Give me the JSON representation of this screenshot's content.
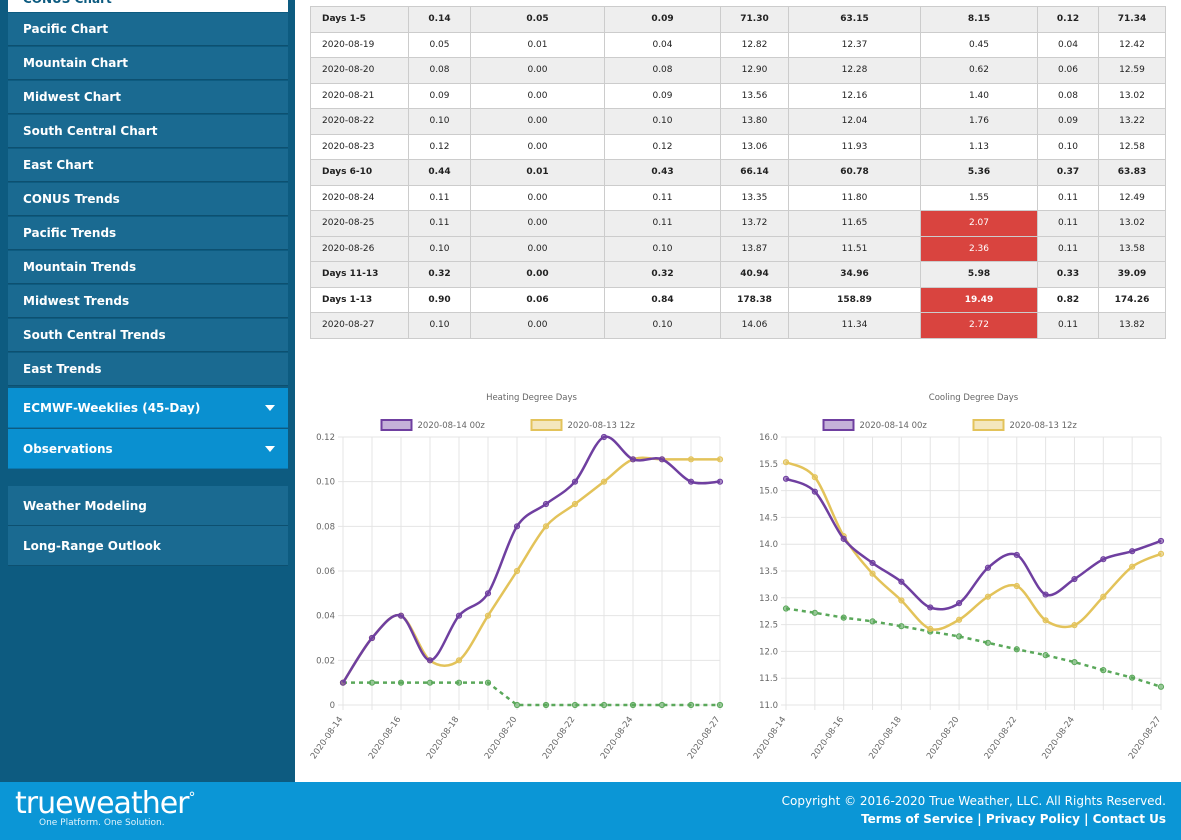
{
  "sidebar": {
    "top_item": "CONUS Chart",
    "items": [
      "Pacific Chart",
      "Mountain Chart",
      "Midwest Chart",
      "South Central Chart",
      "East Chart",
      "CONUS Trends",
      "Pacific Trends",
      "Mountain Trends",
      "Midwest Trends",
      "South Central Trends",
      "East Trends"
    ],
    "dropdowns": [
      "ECMWF-Weeklies (45-Day)",
      "Observations"
    ],
    "sections": [
      "Weather Modeling",
      "Long-Range Outlook"
    ]
  },
  "table": {
    "rows": [
      [
        "Days 1-5",
        "0.14",
        "0.05",
        "0.09",
        "71.30",
        "63.15",
        "8.15",
        "0.12",
        "71.34"
      ],
      [
        "2020-08-19",
        "0.05",
        "0.01",
        "0.04",
        "12.82",
        "12.37",
        "0.45",
        "0.04",
        "12.42"
      ],
      [
        "2020-08-20",
        "0.08",
        "0.00",
        "0.08",
        "12.90",
        "12.28",
        "0.62",
        "0.06",
        "12.59"
      ],
      [
        "2020-08-21",
        "0.09",
        "0.00",
        "0.09",
        "13.56",
        "12.16",
        "1.40",
        "0.08",
        "13.02"
      ],
      [
        "2020-08-22",
        "0.10",
        "0.00",
        "0.10",
        "13.80",
        "12.04",
        "1.76",
        "0.09",
        "13.22"
      ],
      [
        "2020-08-23",
        "0.12",
        "0.00",
        "0.12",
        "13.06",
        "11.93",
        "1.13",
        "0.10",
        "12.58"
      ],
      [
        "Days 6-10",
        "0.44",
        "0.01",
        "0.43",
        "66.14",
        "60.78",
        "5.36",
        "0.37",
        "63.83"
      ],
      [
        "2020-08-24",
        "0.11",
        "0.00",
        "0.11",
        "13.35",
        "11.80",
        "1.55",
        "0.11",
        "12.49"
      ],
      [
        "2020-08-25",
        "0.11",
        "0.00",
        "0.11",
        "13.72",
        "11.65",
        "2.07",
        "0.11",
        "13.02"
      ],
      [
        "2020-08-26",
        "0.10",
        "0.00",
        "0.10",
        "13.87",
        "11.51",
        "2.36",
        "0.11",
        "13.58"
      ],
      [
        "Days 11-13",
        "0.32",
        "0.00",
        "0.32",
        "40.94",
        "34.96",
        "5.98",
        "0.33",
        "39.09"
      ],
      [
        "Days 1-13",
        "0.90",
        "0.06",
        "0.84",
        "178.38",
        "158.89",
        "19.49",
        "0.82",
        "174.26"
      ],
      [
        "2020-08-27",
        "0.10",
        "0.00",
        "0.10",
        "14.06",
        "11.34",
        "2.72",
        "0.11",
        "13.82"
      ]
    ],
    "summary_rows": [
      0,
      6,
      10,
      11
    ],
    "shaded_rows": [
      0,
      2,
      4,
      6,
      8,
      9,
      10,
      12
    ],
    "alert_cells": [
      [
        8,
        6
      ],
      [
        9,
        6
      ],
      [
        11,
        6
      ],
      [
        12,
        6
      ]
    ],
    "alert_color": "#d9443f"
  },
  "charts": [
    {
      "type": "line",
      "title": "Heating Degree Days",
      "categories": [
        "2020-08-14",
        null,
        "2020-08-16",
        null,
        "2020-08-18",
        null,
        "2020-08-20",
        null,
        "2020-08-22",
        null,
        "2020-08-24",
        null,
        null,
        "2020-08-27"
      ],
      "series": [
        {
          "name": "2020-08-14 00z",
          "color": "#6f3fa0",
          "values": [
            0.01,
            0.03,
            0.04,
            0.02,
            0.04,
            0.05,
            0.08,
            0.09,
            0.1,
            0.12,
            0.11,
            0.11,
            0.1,
            0.1
          ]
        },
        {
          "name": "2020-08-13 12z",
          "color": "#e3c35a",
          "values": [
            0.01,
            0.03,
            0.04,
            0.02,
            0.02,
            0.04,
            0.06,
            0.08,
            0.09,
            0.1,
            0.11,
            0.11,
            0.11,
            0.11
          ]
        },
        {
          "color": "#5aa85a",
          "dashed": true,
          "values": [
            0.01,
            0.01,
            0.01,
            0.01,
            0.01,
            0.01,
            0,
            0,
            0,
            0,
            0,
            0,
            0,
            0
          ]
        }
      ],
      "ylim": [
        0,
        0.12
      ],
      "yticks": [
        0,
        0.02,
        0.04,
        0.06,
        0.08,
        {
          "value": 0.1,
          "label": "0.10"
        },
        0.12
      ],
      "grid": true
    },
    {
      "type": "line",
      "title": "Cooling Degree Days",
      "categories": [
        "2020-08-14",
        null,
        "2020-08-16",
        null,
        "2020-08-18",
        null,
        "2020-08-20",
        null,
        "2020-08-22",
        null,
        "2020-08-24",
        null,
        null,
        "2020-08-27"
      ],
      "series": [
        {
          "name": "2020-08-14 00z",
          "color": "#6f3fa0",
          "values": [
            15.22,
            14.98,
            14.1,
            13.65,
            13.3,
            12.82,
            12.9,
            13.56,
            13.8,
            13.06,
            13.35,
            13.72,
            13.87,
            14.06
          ]
        },
        {
          "name": "2020-08-13 12z",
          "color": "#e3c35a",
          "values": [
            15.53,
            15.25,
            14.15,
            13.45,
            12.95,
            12.42,
            12.59,
            13.02,
            13.22,
            12.58,
            12.49,
            13.02,
            13.58,
            13.82
          ]
        },
        {
          "color": "#5aa85a",
          "dashed": true,
          "values": [
            12.8,
            12.72,
            12.63,
            12.56,
            12.47,
            12.37,
            12.28,
            12.16,
            12.04,
            11.93,
            11.8,
            11.65,
            11.51,
            11.34
          ]
        }
      ],
      "ylim": [
        11,
        16
      ],
      "yticks": [
        {
          "value": 11,
          "label": "11.0"
        },
        11.5,
        {
          "value": 12,
          "label": "12.0"
        },
        12.5,
        {
          "value": 13,
          "label": "13.0"
        },
        13.5,
        {
          "value": 14,
          "label": "14.0"
        },
        14.5,
        {
          "value": 15,
          "label": "15.0"
        },
        15.5,
        {
          "value": 16,
          "label": "16.0"
        }
      ],
      "grid": true
    }
  ],
  "footer": {
    "logo": "trueweather",
    "tagline": "One Platform. One Solution.",
    "copyright": "Copyright © 2016-2020 True Weather, LLC. All Rights Reserved.",
    "links": [
      "Terms of Service",
      "Privacy Policy",
      "Contact Us"
    ]
  }
}
